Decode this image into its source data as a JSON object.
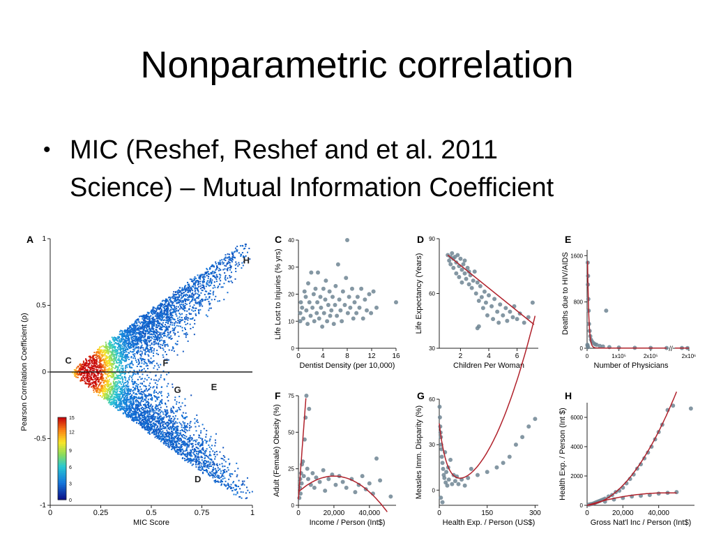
{
  "slide": {
    "title": "Nonparametric correlation",
    "bullet_lines": [
      "MIC (Reshef, Reshef and et al. 2011",
      "Science) – Mutual Information Coefficient"
    ]
  },
  "chart_data": [
    {
      "panel": "A",
      "type": "heatmap",
      "description_kind": "density scatter",
      "xlabel": "MIC Score",
      "ylabel": "Pearson Correlation Coefficient (ρ)",
      "xlim": [
        0,
        1
      ],
      "ylim": [
        -1,
        1
      ],
      "x_ticks": [
        "0",
        "0.25",
        "0.5",
        "0.75",
        "1"
      ],
      "y_ticks": [
        "-1",
        "-0.5",
        "0",
        "0.5",
        "1"
      ],
      "colorbar_ticks": [
        "0",
        "3",
        "6",
        "9",
        "12",
        "15"
      ],
      "annotations": [
        {
          "label": "C",
          "x": 0.09,
          "y": 0.09
        },
        {
          "label": "F",
          "x": 0.57,
          "y": 0.07
        },
        {
          "label": "G",
          "x": 0.63,
          "y": -0.13
        },
        {
          "label": "E",
          "x": 0.81,
          "y": -0.11
        },
        {
          "label": "H",
          "x": 0.97,
          "y": 0.84
        },
        {
          "label": "D",
          "x": 0.73,
          "y": -0.8
        }
      ]
    },
    {
      "panel": "C",
      "type": "scatter",
      "xlabel": "Dentist Density (per 10,000)",
      "ylabel": "Life Lost to Injuries (% yrs)",
      "xlim": [
        0,
        16
      ],
      "ylim": [
        0,
        40
      ],
      "x_ticks": [
        "0",
        "4",
        "8",
        "12",
        "16"
      ],
      "y_ticks": [
        "0",
        "10",
        "20",
        "30",
        "40"
      ],
      "points": [
        [
          0.3,
          10
        ],
        [
          0.3,
          13
        ],
        [
          0.4,
          17
        ],
        [
          0.6,
          15
        ],
        [
          0.8,
          11
        ],
        [
          1,
          21
        ],
        [
          1.2,
          19
        ],
        [
          1.3,
          14
        ],
        [
          1.5,
          9
        ],
        [
          1.6,
          24
        ],
        [
          1.8,
          17
        ],
        [
          2,
          12
        ],
        [
          2.1,
          28
        ],
        [
          2.3,
          15
        ],
        [
          2.5,
          20
        ],
        [
          2.6,
          10
        ],
        [
          2.8,
          22
        ],
        [
          3,
          13
        ],
        [
          3.1,
          17
        ],
        [
          3.2,
          28
        ],
        [
          3.4,
          11
        ],
        [
          3.6,
          19
        ],
        [
          3.7,
          15
        ],
        [
          3.9,
          8
        ],
        [
          4.1,
          22
        ],
        [
          4.2,
          13
        ],
        [
          4.4,
          18
        ],
        [
          4.5,
          25
        ],
        [
          4.7,
          10
        ],
        [
          4.9,
          16
        ],
        [
          5.1,
          21
        ],
        [
          5.2,
          12
        ],
        [
          5.4,
          14
        ],
        [
          5.6,
          19
        ],
        [
          5.8,
          9
        ],
        [
          6,
          16
        ],
        [
          6.1,
          23
        ],
        [
          6.3,
          12
        ],
        [
          6.5,
          31
        ],
        [
          6.7,
          18
        ],
        [
          6.9,
          14
        ],
        [
          7.1,
          10
        ],
        [
          7.3,
          21
        ],
        [
          7.6,
          16
        ],
        [
          7.8,
          26
        ],
        [
          8,
          40
        ],
        [
          8.1,
          13
        ],
        [
          8.3,
          19
        ],
        [
          8.5,
          15
        ],
        [
          8.8,
          22
        ],
        [
          9,
          11
        ],
        [
          9.2,
          17
        ],
        [
          9.5,
          13
        ],
        [
          9.7,
          19
        ],
        [
          10,
          15
        ],
        [
          10.3,
          22
        ],
        [
          10.6,
          11
        ],
        [
          10.9,
          18
        ],
        [
          11.2,
          14
        ],
        [
          11.6,
          20
        ],
        [
          11.9,
          13
        ],
        [
          12.3,
          21
        ],
        [
          12.8,
          15
        ],
        [
          16,
          17
        ]
      ]
    },
    {
      "panel": "D",
      "type": "scatter",
      "xlabel": "Children Per Woman",
      "ylabel": "Life Expectancy (Years)",
      "xlim": [
        0.5,
        7.5
      ],
      "ylim": [
        30,
        90
      ],
      "x_ticks": [
        "2",
        "4",
        "6"
      ],
      "y_ticks": [
        "30",
        "60",
        "90"
      ],
      "fit_line": [
        [
          1.1,
          81
        ],
        [
          7.2,
          43
        ]
      ],
      "points": [
        [
          1.1,
          81
        ],
        [
          1.2,
          78
        ],
        [
          1.3,
          80
        ],
        [
          1.3,
          76
        ],
        [
          1.4,
          82
        ],
        [
          1.5,
          79
        ],
        [
          1.5,
          74
        ],
        [
          1.6,
          80
        ],
        [
          1.7,
          77
        ],
        [
          1.7,
          71
        ],
        [
          1.8,
          81
        ],
        [
          1.9,
          75
        ],
        [
          1.9,
          69
        ],
        [
          2,
          79
        ],
        [
          2.1,
          73
        ],
        [
          2.1,
          66
        ],
        [
          2.2,
          76
        ],
        [
          2.3,
          71
        ],
        [
          2.3,
          78
        ],
        [
          2.4,
          68
        ],
        [
          2.5,
          74
        ],
        [
          2.6,
          65
        ],
        [
          2.6,
          72
        ],
        [
          2.7,
          70
        ],
        [
          2.8,
          63
        ],
        [
          2.9,
          67
        ],
        [
          3,
          72
        ],
        [
          3.1,
          60
        ],
        [
          3.2,
          66
        ],
        [
          3.3,
          56
        ],
        [
          3.4,
          64
        ],
        [
          3.5,
          58
        ],
        [
          3.6,
          52
        ],
        [
          3.7,
          61
        ],
        [
          3.8,
          55
        ],
        [
          3.9,
          48
        ],
        [
          4,
          59
        ],
        [
          4.2,
          53
        ],
        [
          4.3,
          46
        ],
        [
          4.4,
          57
        ],
        [
          4.6,
          50
        ],
        [
          4.7,
          44
        ],
        [
          4.8,
          54
        ],
        [
          5,
          48
        ],
        [
          5.2,
          52
        ],
        [
          5.3,
          45
        ],
        [
          5.5,
          50
        ],
        [
          5.7,
          47
        ],
        [
          5.8,
          53
        ],
        [
          6,
          46
        ],
        [
          6.2,
          49
        ],
        [
          6.5,
          44
        ],
        [
          6.8,
          47
        ],
        [
          7.1,
          55
        ],
        [
          3.3,
          42
        ],
        [
          3.2,
          41
        ]
      ]
    },
    {
      "panel": "E",
      "type": "scatter",
      "xlabel": "Number of Physicians",
      "ylabel": "Deaths due to HIV/AIDS",
      "xlim": [
        0,
        2000000
      ],
      "ylim": [
        0,
        1700
      ],
      "x_ticks": [
        "0",
        "1x10⁵",
        "2x10⁵",
        "2x10⁶"
      ],
      "y_ticks": [
        "0",
        "800",
        "1600"
      ],
      "points": [
        [
          2000,
          1480
        ],
        [
          3000,
          1250
        ],
        [
          2500,
          1100
        ],
        [
          4000,
          850
        ],
        [
          5000,
          650
        ],
        [
          6000,
          420
        ],
        [
          8000,
          300
        ],
        [
          10000,
          210
        ],
        [
          12000,
          150
        ],
        [
          15000,
          120
        ],
        [
          20000,
          90
        ],
        [
          25000,
          70
        ],
        [
          30000,
          60
        ],
        [
          40000,
          40
        ],
        [
          50000,
          30
        ],
        [
          70000,
          20
        ],
        [
          100000,
          12
        ],
        [
          150000,
          8
        ],
        [
          200000,
          6
        ],
        [
          250000,
          5
        ],
        [
          1500000,
          4
        ],
        [
          1900000,
          3
        ],
        [
          1000,
          60
        ],
        [
          1500,
          40
        ],
        [
          3000,
          20
        ],
        [
          60000,
          650
        ]
      ]
    },
    {
      "panel": "F",
      "type": "scatter",
      "xlabel": "Income / Person (Int$)",
      "ylabel": "Adult (Female) Obesity (%)",
      "xlim": [
        0,
        55000
      ],
      "ylim": [
        0,
        75
      ],
      "x_ticks": [
        "0",
        "20,000",
        "40,000"
      ],
      "y_ticks": [
        "0",
        "25",
        "50",
        "75"
      ],
      "points": [
        [
          500,
          5
        ],
        [
          800,
          12
        ],
        [
          1000,
          18
        ],
        [
          1200,
          8
        ],
        [
          1500,
          22
        ],
        [
          1800,
          15
        ],
        [
          2000,
          28
        ],
        [
          2500,
          30
        ],
        [
          3000,
          20
        ],
        [
          3500,
          45
        ],
        [
          4000,
          60
        ],
        [
          4500,
          75
        ],
        [
          5000,
          25
        ],
        [
          5500,
          18
        ],
        [
          6000,
          66
        ],
        [
          7000,
          14
        ],
        [
          8000,
          22
        ],
        [
          9000,
          12
        ],
        [
          10000,
          19
        ],
        [
          12000,
          16
        ],
        [
          14000,
          24
        ],
        [
          15000,
          10
        ],
        [
          17000,
          18
        ],
        [
          19000,
          21
        ],
        [
          21000,
          14
        ],
        [
          23000,
          20
        ],
        [
          25000,
          16
        ],
        [
          27000,
          12
        ],
        [
          30000,
          18
        ],
        [
          32000,
          9
        ],
        [
          34000,
          14
        ],
        [
          36000,
          20
        ],
        [
          38000,
          11
        ],
        [
          40000,
          15
        ],
        [
          42000,
          8
        ],
        [
          44000,
          32
        ],
        [
          46000,
          17
        ],
        [
          52000,
          6
        ]
      ]
    },
    {
      "panel": "G",
      "type": "scatter",
      "xlabel": "Health Exp. / Person (US$)",
      "ylabel": "Measles Imm. Disparity (%)",
      "xlim": [
        0,
        310
      ],
      "ylim": [
        -10,
        60
      ],
      "x_ticks": [
        "0",
        "150",
        "300"
      ],
      "y_ticks": [
        "0",
        "30",
        "60"
      ],
      "points": [
        [
          1,
          55
        ],
        [
          2,
          48
        ],
        [
          3,
          42
        ],
        [
          4,
          38
        ],
        [
          5,
          35
        ],
        [
          6,
          30
        ],
        [
          7,
          27
        ],
        [
          8,
          22
        ],
        [
          10,
          18
        ],
        [
          12,
          14
        ],
        [
          14,
          10
        ],
        [
          16,
          8
        ],
        [
          18,
          25
        ],
        [
          20,
          5
        ],
        [
          22,
          12
        ],
        [
          25,
          3
        ],
        [
          28,
          15
        ],
        [
          30,
          7
        ],
        [
          35,
          20
        ],
        [
          40,
          4
        ],
        [
          45,
          10
        ],
        [
          50,
          6
        ],
        [
          55,
          9
        ],
        [
          60,
          4
        ],
        [
          70,
          7
        ],
        [
          80,
          3
        ],
        [
          90,
          8
        ],
        [
          100,
          14
        ],
        [
          120,
          10
        ],
        [
          150,
          12
        ],
        [
          180,
          15
        ],
        [
          200,
          18
        ],
        [
          220,
          22
        ],
        [
          240,
          30
        ],
        [
          260,
          35
        ],
        [
          280,
          42
        ],
        [
          300,
          47
        ],
        [
          5,
          -5
        ],
        [
          10,
          -8
        ]
      ]
    },
    {
      "panel": "H",
      "type": "scatter",
      "xlabel": "Gross Nat'l Inc / Person (Int$)",
      "ylabel": "Health Exp. / Person (Int $)",
      "xlim": [
        0,
        60000
      ],
      "ylim": [
        0,
        7000
      ],
      "x_ticks": [
        "0",
        "20,000",
        "40,000"
      ],
      "y_ticks": [
        "0",
        "2000",
        "4000",
        "6000"
      ],
      "points": [
        [
          1000,
          50
        ],
        [
          2000,
          80
        ],
        [
          3000,
          100
        ],
        [
          4000,
          150
        ],
        [
          5000,
          200
        ],
        [
          6000,
          250
        ],
        [
          7000,
          300
        ],
        [
          8000,
          350
        ],
        [
          9000,
          400
        ],
        [
          10000,
          450
        ],
        [
          12000,
          600
        ],
        [
          14000,
          700
        ],
        [
          16000,
          900
        ],
        [
          18000,
          1000
        ],
        [
          20000,
          1200
        ],
        [
          22000,
          1500
        ],
        [
          24000,
          1800
        ],
        [
          26000,
          2100
        ],
        [
          28000,
          2500
        ],
        [
          30000,
          2800
        ],
        [
          32000,
          3200
        ],
        [
          34000,
          3600
        ],
        [
          36000,
          4000
        ],
        [
          38000,
          4500
        ],
        [
          40000,
          5000
        ],
        [
          42000,
          5500
        ],
        [
          45000,
          6500
        ],
        [
          48000,
          6800
        ],
        [
          58000,
          6600
        ],
        [
          10000,
          250
        ],
        [
          15000,
          400
        ],
        [
          20000,
          500
        ],
        [
          25000,
          600
        ],
        [
          30000,
          650
        ],
        [
          35000,
          700
        ],
        [
          40000,
          800
        ],
        [
          45000,
          850
        ],
        [
          50000,
          900
        ]
      ]
    }
  ]
}
